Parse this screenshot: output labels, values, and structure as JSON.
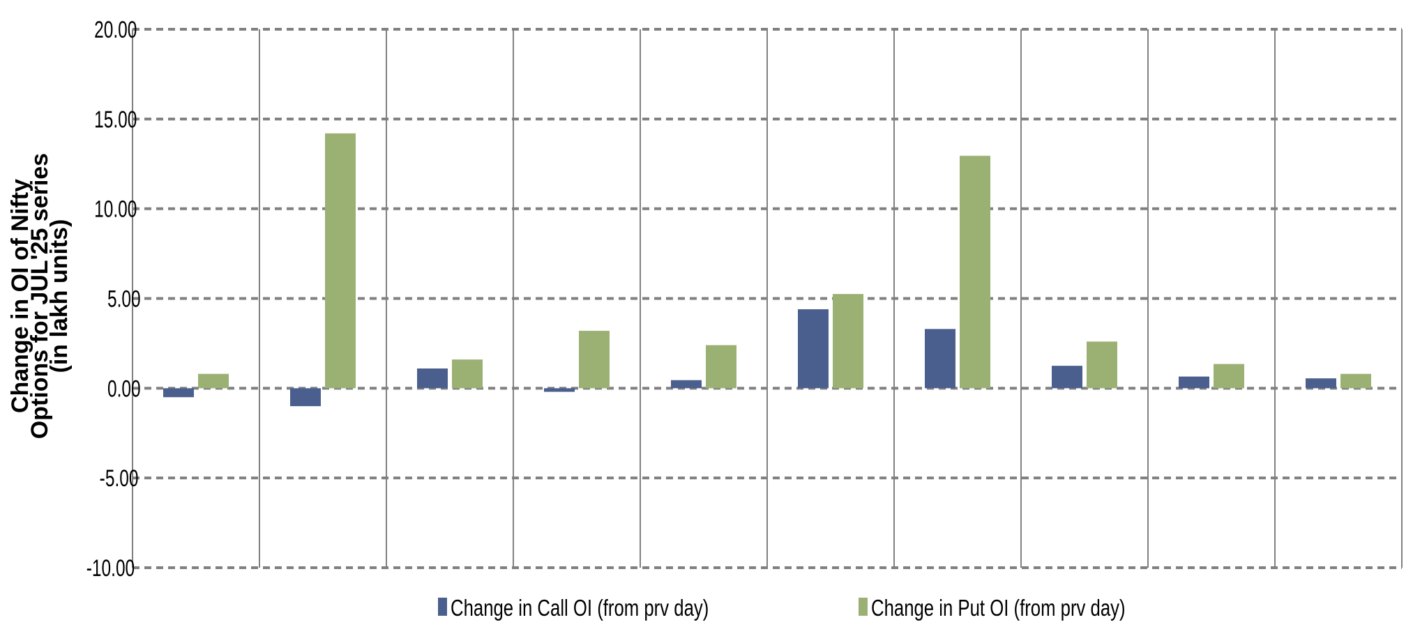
{
  "chart_data": {
    "type": "bar",
    "title": "",
    "xlabel": "",
    "ylabel_lines": [
      "Change in OI of Nifty",
      "Options for JUL'25 series",
      "(in lakh units)"
    ],
    "ylim": [
      -10,
      20
    ],
    "yticks": [
      "20.00",
      "15.00",
      "10.00",
      "5.00",
      "0.00",
      "-5.00",
      "-10.00"
    ],
    "ytick_values": [
      20,
      15,
      10,
      5,
      0,
      -5,
      -10
    ],
    "grid": true,
    "legend_position": "bottom",
    "categories": [
      "",
      "",
      "",
      "",
      "",
      "",
      "",
      "",
      "",
      ""
    ],
    "series": [
      {
        "name": "Change in Call OI (from prv day)",
        "color": "#4a5f8d",
        "values": [
          -0.5,
          -1.0,
          1.1,
          -0.2,
          0.45,
          4.4,
          3.3,
          1.25,
          0.65,
          0.55
        ]
      },
      {
        "name": "Change in Put OI (from prv day)",
        "color": "#9bb174",
        "values": [
          0.8,
          14.2,
          1.6,
          3.2,
          2.4,
          5.25,
          12.95,
          2.6,
          1.35,
          0.8
        ]
      }
    ]
  },
  "colors": {
    "grid": "#808080",
    "call": "#4a5f8d",
    "put": "#9bb174"
  }
}
